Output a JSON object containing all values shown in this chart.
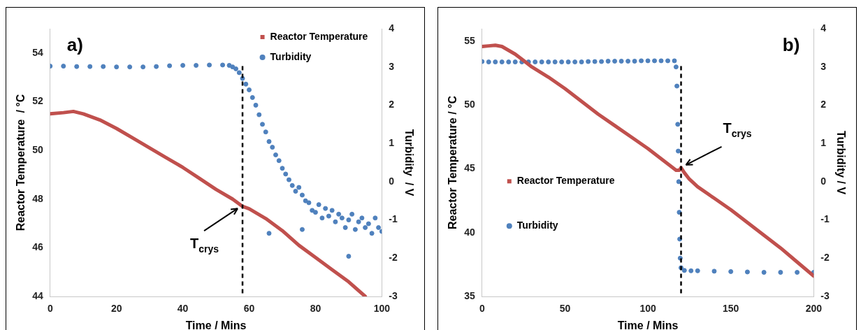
{
  "chart_data": [
    {
      "type": "scatter",
      "xlabel": "Time / Mins",
      "ylabel": "Reactor Temperature  / °C",
      "y2label": "Turbidity  / V",
      "xlim": [
        0,
        100
      ],
      "xticks": [
        0,
        20,
        40,
        60,
        80,
        100
      ],
      "ylim": [
        44,
        55
      ],
      "yticks": [
        44,
        46,
        48,
        50,
        52,
        54
      ],
      "y2lim": [
        -3,
        4
      ],
      "y2ticks": [
        -3,
        -2,
        -1,
        0,
        1,
        2,
        3,
        4
      ],
      "legend": "top right",
      "grid": false,
      "series": [
        {
          "name": "Reactor Temperature",
          "type": "line",
          "marker": "none",
          "color": "#c0504d",
          "x": [
            0,
            4,
            7,
            10,
            15,
            20,
            25,
            30,
            35,
            40,
            45,
            50,
            55,
            58,
            60,
            65,
            70,
            75,
            80,
            85,
            90,
            95
          ],
          "values": [
            51.5,
            51.55,
            51.6,
            51.5,
            51.25,
            50.9,
            50.5,
            50.1,
            49.7,
            49.3,
            48.85,
            48.4,
            48.0,
            47.7,
            47.6,
            47.2,
            46.7,
            46.1,
            45.6,
            45.1,
            44.6,
            44.0
          ]
        },
        {
          "name": "Turbidity",
          "axis": "y2",
          "marker": "circle",
          "color": "#4f81bd",
          "x": [
            0,
            4,
            8,
            12,
            16,
            20,
            24,
            28,
            32,
            36,
            40,
            44,
            48,
            52,
            54,
            55,
            56,
            57,
            58,
            59,
            60,
            61,
            62,
            63,
            64,
            65,
            66,
            67,
            68,
            69,
            70,
            71,
            72,
            73,
            74,
            75,
            76,
            77,
            78,
            79,
            80,
            81,
            82,
            83,
            84,
            85,
            86,
            87,
            88,
            89,
            90,
            91,
            92,
            93,
            94,
            95,
            96,
            97,
            98,
            99,
            100,
            66,
            76,
            90
          ],
          "values": [
            3.02,
            3.02,
            3.01,
            3.01,
            3.01,
            3.0,
            3.0,
            3.0,
            3.01,
            3.03,
            3.04,
            3.04,
            3.05,
            3.05,
            3.04,
            3.0,
            2.95,
            2.85,
            2.7,
            2.55,
            2.4,
            2.2,
            2.0,
            1.75,
            1.5,
            1.3,
            1.05,
            0.9,
            0.7,
            0.55,
            0.35,
            0.2,
            0.05,
            -0.1,
            -0.25,
            -0.15,
            -0.35,
            -0.5,
            -0.55,
            -0.75,
            -0.8,
            -0.6,
            -0.95,
            -0.7,
            -0.9,
            -0.75,
            -1.05,
            -0.85,
            -0.95,
            -1.2,
            -1.0,
            -0.85,
            -1.25,
            -1.05,
            -0.95,
            -1.2,
            -1.1,
            -1.35,
            -0.95,
            -1.2,
            -1.3,
            -1.35,
            -1.25,
            -1.95
          ]
        }
      ],
      "ref_lines": [
        {
          "axis": "x",
          "value": 58,
          "color": "#000000",
          "line_style": "dashed"
        }
      ],
      "annotations": [
        "a)",
        {
          "text": "T$_{crys}$",
          "x": 58,
          "y": 47.7
        }
      ]
    },
    {
      "type": "scatter",
      "xlabel": "Time / Mins",
      "ylabel": "Reactor Temperature / °C",
      "y2label": "Turbidity / V",
      "xlim": [
        0,
        200
      ],
      "xticks": [
        0,
        50,
        100,
        150,
        200
      ],
      "ylim": [
        35,
        56
      ],
      "yticks": [
        35,
        40,
        45,
        50,
        55
      ],
      "y2lim": [
        -3,
        4
      ],
      "y2ticks": [
        -3,
        -2,
        -1,
        0,
        1,
        2,
        3,
        4
      ],
      "legend": "left",
      "grid": false,
      "series": [
        {
          "name": "Reactor Temperature",
          "type": "line",
          "marker": "none",
          "color": "#c0504d",
          "x": [
            0,
            4,
            8,
            12,
            16,
            20,
            25,
            30,
            40,
            50,
            60,
            70,
            80,
            90,
            100,
            110,
            117,
            119,
            120,
            122,
            125,
            130,
            140,
            150,
            160,
            170,
            180,
            190,
            200
          ],
          "values": [
            54.6,
            54.65,
            54.7,
            54.6,
            54.3,
            54.0,
            53.5,
            53.0,
            52.2,
            51.3,
            50.3,
            49.3,
            48.4,
            47.5,
            46.6,
            45.6,
            44.9,
            44.9,
            45.1,
            44.7,
            44.2,
            43.6,
            42.7,
            41.8,
            40.8,
            39.8,
            38.8,
            37.7,
            36.6
          ]
        },
        {
          "name": "Turbidity",
          "axis": "y2",
          "marker": "circle",
          "color": "#4f81bd",
          "x": [
            0,
            4,
            8,
            12,
            16,
            20,
            24,
            28,
            32,
            36,
            40,
            44,
            48,
            52,
            56,
            60,
            64,
            68,
            72,
            76,
            80,
            84,
            88,
            92,
            96,
            100,
            104,
            108,
            112,
            116,
            117,
            117.5,
            118,
            118.3,
            118.6,
            118.9,
            119.2,
            119.5,
            120,
            122,
            126,
            130,
            140,
            150,
            160,
            170,
            180,
            190,
            200
          ],
          "values": [
            3.14,
            3.13,
            3.13,
            3.13,
            3.13,
            3.13,
            3.13,
            3.13,
            3.13,
            3.13,
            3.13,
            3.13,
            3.13,
            3.13,
            3.13,
            3.13,
            3.14,
            3.14,
            3.14,
            3.15,
            3.15,
            3.15,
            3.15,
            3.15,
            3.16,
            3.16,
            3.16,
            3.16,
            3.16,
            3.16,
            3.0,
            2.5,
            1.5,
            0.8,
            0.0,
            -0.8,
            -1.5,
            -2.0,
            -2.25,
            -2.32,
            -2.33,
            -2.33,
            -2.34,
            -2.35,
            -2.36,
            -2.37,
            -2.37,
            -2.37,
            -2.37
          ]
        }
      ],
      "ref_lines": [
        {
          "axis": "x",
          "value": 120,
          "color": "#000000",
          "line_style": "dashed"
        }
      ],
      "annotations": [
        "b)",
        {
          "text": "T$_{crys}$",
          "x": 120,
          "y": 45.1
        }
      ]
    }
  ]
}
